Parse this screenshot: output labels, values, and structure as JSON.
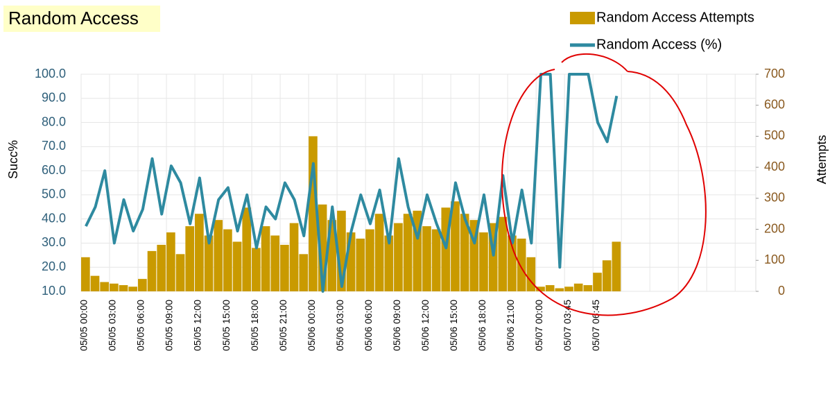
{
  "chart_data": {
    "type": "bar-line",
    "title": "Random Access",
    "ylabel": "Succ%",
    "y2label": "Attempts",
    "categories": [
      "05/05 00:00",
      null,
      null,
      "05/05 03:00",
      null,
      null,
      "05/05 06:00",
      null,
      null,
      "05/05 09:00",
      null,
      null,
      "05/05 12:00",
      null,
      null,
      "05/05 15:00",
      null,
      null,
      "05/05 18:00",
      null,
      null,
      "05/05 21:00",
      null,
      null,
      "05/06 00:00",
      null,
      null,
      "05/06 03:00",
      null,
      null,
      "05/06 06:00",
      null,
      null,
      "05/06 09:00",
      null,
      null,
      "05/06 12:00",
      null,
      null,
      "05/06 15:00",
      null,
      null,
      "05/06 18:00",
      null,
      null,
      "05/06 21:00",
      null,
      null,
      "05/07 00:00",
      null,
      null,
      "05/07 03:45",
      null,
      null,
      "05/07 06:45",
      null,
      null,
      null,
      null,
      null,
      null,
      null,
      null,
      null,
      null,
      null,
      null,
      null,
      null,
      null,
      null,
      null
    ],
    "series": [
      {
        "name": "Random Access Attempts",
        "kind": "bar",
        "axis": "y2",
        "color": "#c99a00",
        "values": [
          110,
          50,
          30,
          25,
          20,
          15,
          40,
          130,
          150,
          190,
          120,
          210,
          250,
          180,
          230,
          200,
          160,
          270,
          140,
          210,
          180,
          150,
          220,
          120,
          500,
          280,
          230,
          260,
          190,
          170,
          200,
          250,
          180,
          220,
          250,
          260,
          210,
          200,
          270,
          290,
          250,
          230,
          190,
          220,
          240,
          180,
          170,
          110,
          15,
          20,
          10,
          15,
          25,
          20,
          60,
          100,
          160,
          null,
          null,
          null,
          null,
          null,
          null,
          null,
          null,
          null,
          null,
          null,
          null,
          null,
          null,
          null
        ]
      },
      {
        "name": "Random Access (%)",
        "kind": "line",
        "color": "#2e8aa0",
        "values": [
          37,
          45,
          60,
          30,
          48,
          35,
          44,
          65,
          42,
          62,
          55,
          38,
          57,
          30,
          48,
          53,
          35,
          50,
          28,
          45,
          40,
          55,
          48,
          33,
          63,
          10,
          45,
          12,
          35,
          50,
          38,
          52,
          30,
          65,
          45,
          32,
          50,
          38,
          28,
          55,
          40,
          30,
          50,
          25,
          58,
          30,
          52,
          30,
          100,
          100,
          20,
          100,
          100,
          100,
          80,
          72,
          91,
          null,
          null,
          null,
          null,
          null,
          null,
          null,
          null,
          null,
          null,
          null,
          null,
          null,
          null,
          null
        ]
      }
    ],
    "ylim": [
      10,
      100
    ],
    "yticks": [
      {
        "value": 10,
        "label": "10.0"
      },
      {
        "value": 20,
        "label": "20.0"
      },
      {
        "value": 30,
        "label": "30.0"
      },
      {
        "value": 40,
        "label": "40.0"
      },
      {
        "value": 50,
        "label": "50.0"
      },
      {
        "value": 60,
        "label": "60.0"
      },
      {
        "value": 70,
        "label": "70.0"
      },
      {
        "value": 80,
        "label": "80.0"
      },
      {
        "value": 90,
        "label": "90.0"
      },
      {
        "value": 100,
        "label": "100.0"
      }
    ],
    "y2lim": [
      0,
      700
    ],
    "y2ticks": [
      0,
      100,
      200,
      300,
      400,
      500,
      600,
      700
    ],
    "grid": true
  }
}
